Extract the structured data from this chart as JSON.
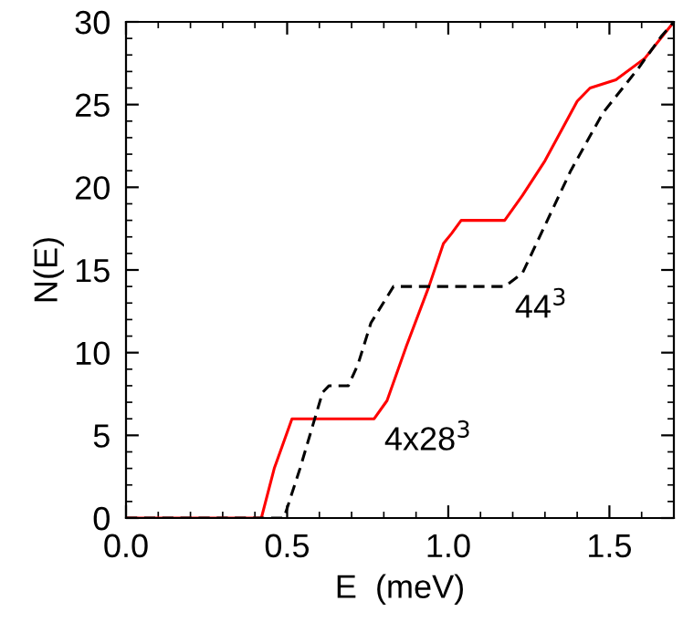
{
  "chart_data": {
    "type": "line",
    "xlabel": "E  (meV)",
    "ylabel": "N(E)",
    "xlim": [
      0,
      1.7
    ],
    "ylim": [
      0,
      30
    ],
    "xticks": [
      {
        "value": 0,
        "label": "0.0"
      },
      {
        "value": 0.5,
        "label": "0.5"
      },
      {
        "value": 1.0,
        "label": "1.0"
      },
      {
        "value": 1.5,
        "label": "1.5"
      }
    ],
    "yticks": [
      0,
      5,
      10,
      15,
      20,
      25,
      30
    ],
    "grid": false,
    "legend": false,
    "series": [
      {
        "color": "#ff0000",
        "line_style": "solid",
        "x": [
          0,
          0.42,
          0.46,
          0.515,
          0.77,
          0.81,
          0.87,
          0.94,
          0.985,
          1.01,
          1.04,
          1.175,
          1.23,
          1.3,
          1.4,
          1.44,
          1.52,
          1.61,
          1.7
        ],
        "values": [
          0,
          0,
          3.0,
          6.0,
          6.0,
          7.1,
          10.4,
          14.0,
          16.6,
          17.2,
          18.0,
          18.0,
          19.5,
          21.6,
          25.2,
          26.0,
          26.5,
          27.8,
          30
        ]
      },
      {
        "color": "#000000",
        "line_style": "dashed",
        "x": [
          0,
          0.49,
          0.54,
          0.61,
          0.63,
          0.69,
          0.72,
          0.76,
          0.83,
          1.175,
          1.23,
          1.38,
          1.48,
          1.59,
          1.66,
          1.7
        ],
        "values": [
          0,
          0,
          3.0,
          7.6,
          8.0,
          8.0,
          9.3,
          11.8,
          14.0,
          14.0,
          14.8,
          21.0,
          24.5,
          27.2,
          29.1,
          30
        ]
      }
    ],
    "annotations": [
      {
        "text": "4x28$^{3}$",
        "x": 0.77,
        "y": 6.0
      },
      {
        "text": "44$^{3}$",
        "x": 1.175,
        "y": 14.0
      }
    ]
  }
}
